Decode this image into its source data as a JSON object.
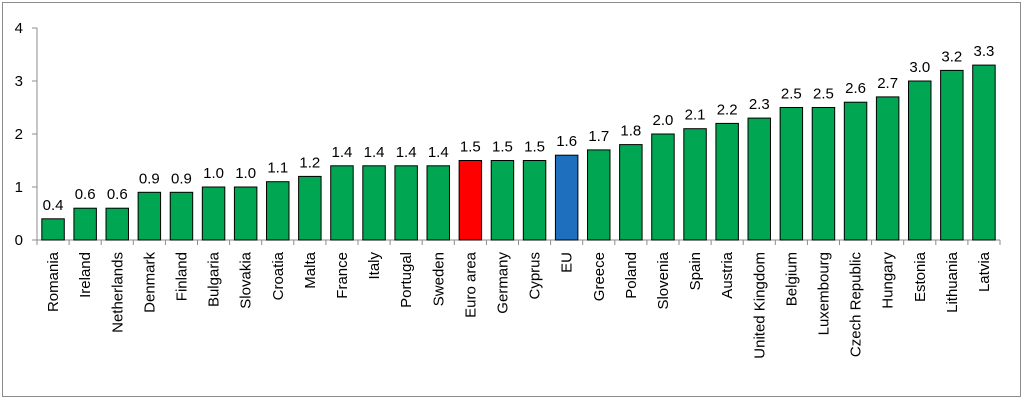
{
  "chart_data": {
    "type": "bar",
    "title": "",
    "xlabel": "",
    "ylabel": "",
    "ylim": [
      0,
      4
    ],
    "yticks": [
      0,
      1,
      2,
      3,
      4
    ],
    "grid": false,
    "legend": "none",
    "categories": [
      "Romania",
      "Ireland",
      "Netherlands",
      "Denmark",
      "Finland",
      "Bulgaria",
      "Slovakia",
      "Croatia",
      "Malta",
      "France",
      "Italy",
      "Portugal",
      "Sweden",
      "Euro area",
      "Germany",
      "Cyprus",
      "EU",
      "Greece",
      "Poland",
      "Slovenia",
      "Spain",
      "Austria",
      "United Kingdom",
      "Belgium",
      "Luxembourg",
      "Czech Republic",
      "Hungary",
      "Estonia",
      "Lithuania",
      "Latvia"
    ],
    "values": [
      0.4,
      0.6,
      0.6,
      0.9,
      0.9,
      1.0,
      1.0,
      1.1,
      1.2,
      1.4,
      1.4,
      1.4,
      1.4,
      1.5,
      1.5,
      1.5,
      1.6,
      1.7,
      1.8,
      2.0,
      2.1,
      2.2,
      2.3,
      2.5,
      2.5,
      2.6,
      2.7,
      3.0,
      3.2,
      3.3
    ],
    "value_labels": [
      "0.4",
      "0.6",
      "0.6",
      "0.9",
      "0.9",
      "1.0",
      "1.0",
      "1.1",
      "1.2",
      "1.4",
      "1.4",
      "1.4",
      "1.4",
      "1.5",
      "1.5",
      "1.5",
      "1.6",
      "1.7",
      "1.8",
      "2.0",
      "2.1",
      "2.2",
      "2.3",
      "2.5",
      "2.5",
      "2.6",
      "2.7",
      "3.0",
      "3.2",
      "3.3"
    ],
    "colors": {
      "default": "#00a651",
      "highlight": {
        "Euro area": "#ff0000",
        "EU": "#1f6fbf"
      },
      "outline": "#000000",
      "axis": "#8c8c8c"
    }
  }
}
